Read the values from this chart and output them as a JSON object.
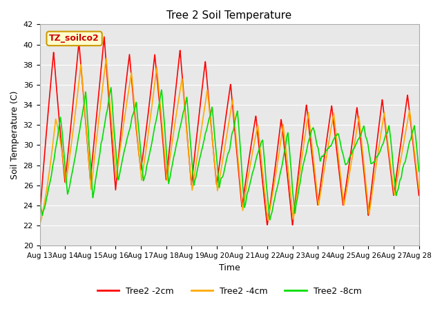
{
  "title": "Tree 2 Soil Temperature",
  "xlabel": "Time",
  "ylabel": "Soil Temperature (C)",
  "ylim": [
    20,
    42
  ],
  "yticks": [
    20,
    22,
    24,
    26,
    28,
    30,
    32,
    34,
    36,
    38,
    40,
    42
  ],
  "xtick_labels": [
    "Aug 13",
    "Aug 14",
    "Aug 15",
    "Aug 16",
    "Aug 17",
    "Aug 18",
    "Aug 19",
    "Aug 20",
    "Aug 21",
    "Aug 22",
    "Aug 23",
    "Aug 24",
    "Aug 25",
    "Aug 26",
    "Aug 27",
    "Aug 28"
  ],
  "annotation_text": "TZ_soilco2",
  "annotation_box_color": "#ffffcc",
  "annotation_box_edge": "#cc9900",
  "annotation_text_color": "#cc0000",
  "colors": {
    "2cm": "#ff0000",
    "4cm": "#ffaa00",
    "8cm": "#00dd00"
  },
  "legend_labels": [
    "Tree2 -2cm",
    "Tree2 -4cm",
    "Tree2 -8cm"
  ],
  "bg_color": "#e8e8e8",
  "line_width": 1.2,
  "n_days": 15,
  "day_peaks_2cm": [
    39.3,
    39.2,
    41.1,
    40.5,
    37.8,
    40.0,
    39.0,
    37.8,
    34.7,
    31.5,
    33.5,
    34.5,
    33.5,
    34.0,
    35.0
  ],
  "day_mins_2cm": [
    23.0,
    26.3,
    26.5,
    25.5,
    27.5,
    26.5,
    26.0,
    26.0,
    23.8,
    22.0,
    22.0,
    24.0,
    24.0,
    23.0,
    25.0
  ],
  "day_peaks_4cm": [
    26.0,
    36.5,
    39.0,
    38.5,
    36.5,
    38.5,
    35.5,
    35.5,
    34.0,
    30.8,
    32.8,
    33.5,
    33.0,
    32.8,
    33.5
  ],
  "day_mins_4cm": [
    22.2,
    26.2,
    25.5,
    26.8,
    26.5,
    26.5,
    25.5,
    25.5,
    23.5,
    22.5,
    22.5,
    24.0,
    24.0,
    23.0,
    25.0
  ],
  "day_peaks_8cm": [
    27.2,
    34.0,
    35.5,
    35.8,
    34.0,
    36.0,
    34.5,
    33.5,
    33.5,
    30.0,
    31.5,
    32.0,
    31.0,
    32.0,
    32.0
  ],
  "day_mins_8cm": [
    22.8,
    25.0,
    24.5,
    26.5,
    26.3,
    26.2,
    26.0,
    26.0,
    24.0,
    22.5,
    22.5,
    28.5,
    28.0,
    28.5,
    25.0
  ],
  "peak_time_2cm": 0.55,
  "peak_time_4cm": 0.6,
  "peak_time_8cm": 0.72
}
